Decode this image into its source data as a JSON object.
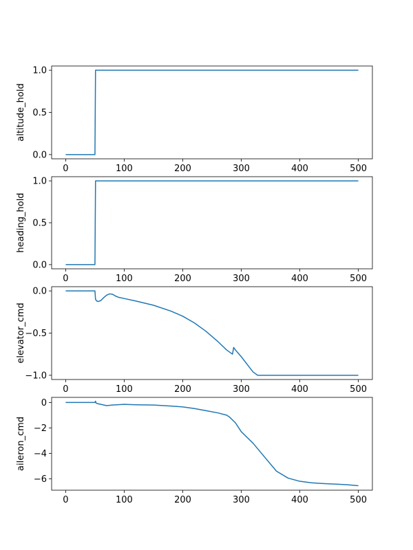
{
  "chart_data": [
    {
      "type": "line",
      "ylabel": "altitude_hold",
      "xlim": [
        -24,
        524
      ],
      "ylim": [
        -0.05,
        1.05
      ],
      "xticks": [
        0,
        100,
        200,
        300,
        400,
        500
      ],
      "xtick_labels": [
        "0",
        "100",
        "200",
        "300",
        "400",
        "500"
      ],
      "yticks": [
        0.0,
        0.5,
        1.0
      ],
      "ytick_labels": [
        "0.0",
        "0.5",
        "1.0"
      ],
      "series": [
        {
          "color": "#1f77b4",
          "x": [
            0,
            50,
            51,
            500
          ],
          "y": [
            0,
            0,
            1,
            1
          ]
        }
      ]
    },
    {
      "type": "line",
      "ylabel": "heading_hold",
      "xlim": [
        -24,
        524
      ],
      "ylim": [
        -0.05,
        1.05
      ],
      "xticks": [
        0,
        100,
        200,
        300,
        400,
        500
      ],
      "xtick_labels": [
        "0",
        "100",
        "200",
        "300",
        "400",
        "500"
      ],
      "yticks": [
        0.0,
        0.5,
        1.0
      ],
      "ytick_labels": [
        "0.0",
        "0.5",
        "1.0"
      ],
      "series": [
        {
          "color": "#1f77b4",
          "x": [
            0,
            50,
            51,
            500
          ],
          "y": [
            0,
            0,
            1,
            1
          ]
        }
      ]
    },
    {
      "type": "line",
      "ylabel": "elevator_cmd",
      "xlim": [
        -24,
        524
      ],
      "ylim": [
        -1.05,
        0.05
      ],
      "xticks": [
        0,
        100,
        200,
        300,
        400,
        500
      ],
      "xtick_labels": [
        "0",
        "100",
        "200",
        "300",
        "400",
        "500"
      ],
      "yticks": [
        -1.0,
        -0.5,
        0.0
      ],
      "ytick_labels": [
        "−1.0",
        "−0.5",
        "0.0"
      ],
      "series": [
        {
          "color": "#1f77b4",
          "x": [
            0,
            50,
            51,
            53,
            56,
            60,
            65,
            70,
            75,
            80,
            85,
            90,
            100,
            120,
            150,
            180,
            200,
            220,
            240,
            260,
            275,
            285,
            287,
            290,
            300,
            310,
            320,
            328,
            350,
            400,
            450,
            500
          ],
          "y": [
            0,
            0,
            -0.1,
            -0.12,
            -0.125,
            -0.115,
            -0.08,
            -0.05,
            -0.035,
            -0.04,
            -0.06,
            -0.075,
            -0.09,
            -0.12,
            -0.17,
            -0.24,
            -0.3,
            -0.38,
            -0.48,
            -0.6,
            -0.7,
            -0.75,
            -0.67,
            -0.7,
            -0.78,
            -0.87,
            -0.96,
            -1.0,
            -1.0,
            -1.0,
            -1.0,
            -1.0
          ]
        }
      ]
    },
    {
      "type": "line",
      "ylabel": "aileron_cmd",
      "xlim": [
        -24,
        524
      ],
      "ylim": [
        -6.9,
        0.4
      ],
      "xticks": [
        0,
        100,
        200,
        300,
        400,
        500
      ],
      "xtick_labels": [
        "0",
        "100",
        "200",
        "300",
        "400",
        "500"
      ],
      "yticks": [
        -6,
        -4,
        -2,
        0
      ],
      "ytick_labels": [
        "−6",
        "−4",
        "−2",
        "0"
      ],
      "series": [
        {
          "color": "#1f77b4",
          "x": [
            0,
            50,
            51,
            52,
            55,
            60,
            70,
            80,
            100,
            120,
            150,
            180,
            200,
            220,
            240,
            260,
            275,
            280,
            290,
            300,
            320,
            340,
            360,
            380,
            400,
            420,
            440,
            460,
            480,
            500
          ],
          "y": [
            0,
            0,
            0.1,
            -0.05,
            -0.1,
            -0.15,
            -0.25,
            -0.2,
            -0.15,
            -0.18,
            -0.2,
            -0.28,
            -0.35,
            -0.48,
            -0.65,
            -0.82,
            -1.0,
            -1.15,
            -1.6,
            -2.3,
            -3.2,
            -4.3,
            -5.4,
            -5.95,
            -6.2,
            -6.32,
            -6.38,
            -6.42,
            -6.47,
            -6.55
          ]
        }
      ]
    }
  ]
}
